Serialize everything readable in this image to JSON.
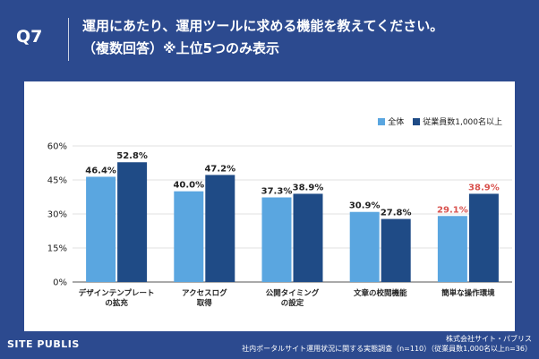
{
  "question": {
    "label": "Q7",
    "line1": "運用にあたり、運用ツールに求める機能を教えてください。",
    "line2": "（複数回答）※上位5つのみ表示"
  },
  "chart_data": {
    "type": "bar",
    "categories": [
      "デザインテンプレートの拡充",
      "アクセスログ取得",
      "公開タイミングの設定",
      "文章の校閲機能",
      "簡単な操作環境"
    ],
    "category_labels": [
      [
        "デザインテンプレート",
        "の拡充"
      ],
      [
        "アクセスログ",
        "取得"
      ],
      [
        "公開タイミング",
        "の設定"
      ],
      [
        "文章の校閲機能"
      ],
      [
        "簡単な操作環境"
      ]
    ],
    "series": [
      {
        "name": "全体",
        "color": "#5aa6e0",
        "values": [
          46.4,
          40.0,
          37.3,
          30.9,
          29.1
        ]
      },
      {
        "name": "従業員数1,000名以上",
        "color": "#1f4b86",
        "values": [
          52.8,
          47.2,
          38.9,
          27.8,
          38.9
        ]
      }
    ],
    "value_labels": [
      [
        "46.4%",
        "40.0%",
        "37.3%",
        "30.9%",
        "29.1%"
      ],
      [
        "52.8%",
        "47.2%",
        "38.9%",
        "27.8%",
        "38.9%"
      ]
    ],
    "highlight_category_index": 4,
    "highlight_color": "#d9534f",
    "yticks": [
      "0%",
      "15%",
      "30%",
      "45%",
      "60%"
    ],
    "ylim": [
      0,
      60
    ],
    "title": "",
    "xlabel": "",
    "ylabel": ""
  },
  "footer": {
    "logo": "SITE PUBLIS",
    "company": "株式会社サイト・パブリス",
    "source": "社内ポータルサイト運用状況に関する実態調査（n=110）（従業員数1,000名以上n=36）"
  }
}
